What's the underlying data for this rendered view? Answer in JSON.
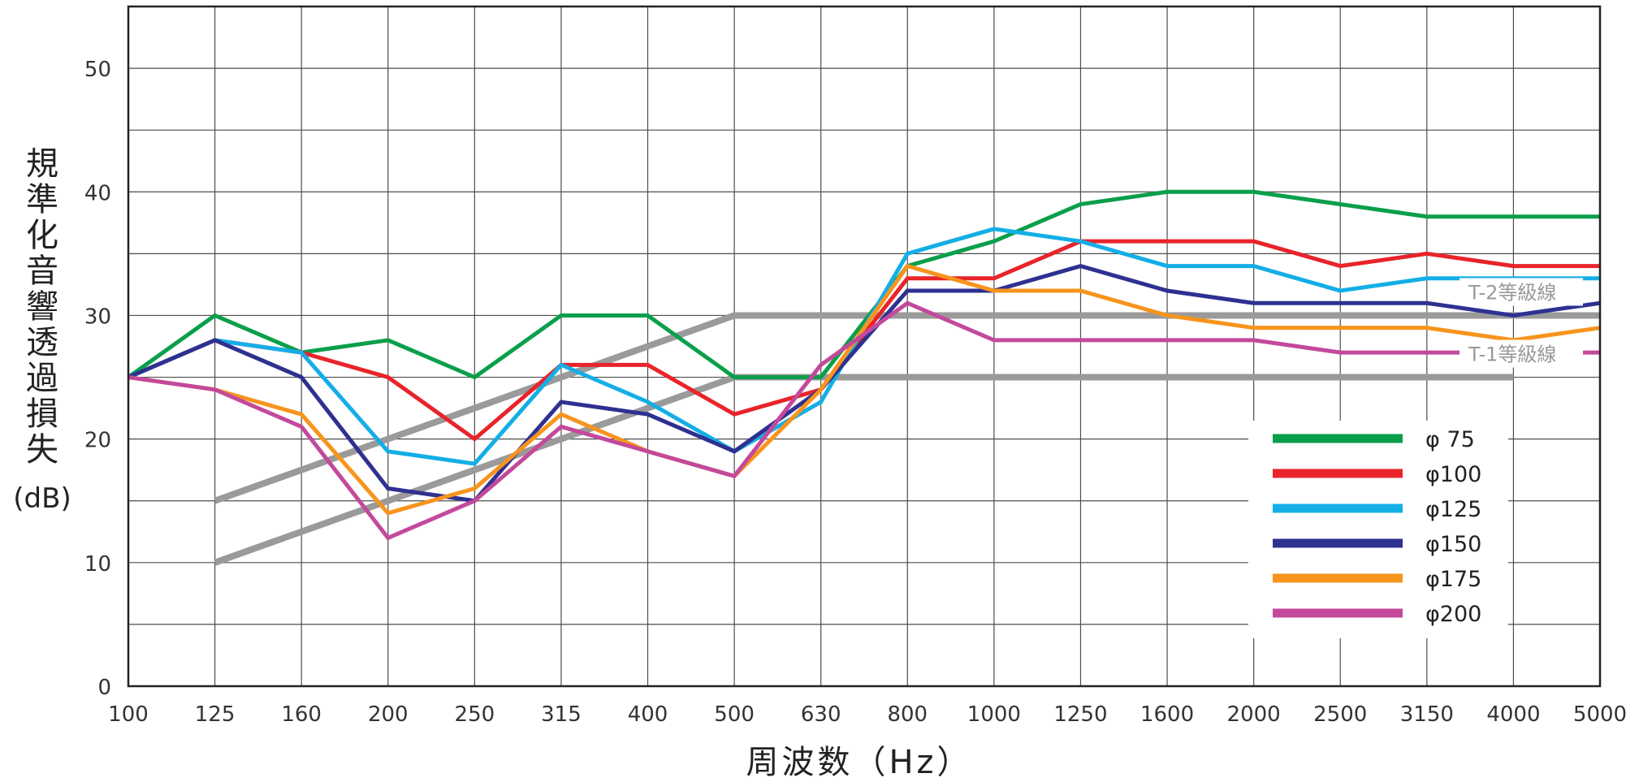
{
  "chart_data": {
    "type": "line",
    "xlabel": "周波数（Hz）",
    "ylabel": "規準化音響透過損失",
    "ylabel_unit": "(dB)",
    "ylim": [
      0,
      55
    ],
    "yticks": [
      0,
      10,
      20,
      30,
      40,
      50
    ],
    "categories": [
      "100",
      "125",
      "160",
      "200",
      "250",
      "315",
      "400",
      "500",
      "630",
      "800",
      "1000",
      "1250",
      "1600",
      "2000",
      "2500",
      "3150",
      "4000",
      "5000"
    ],
    "grid": true,
    "legend_position": "bottom-right",
    "series": [
      {
        "name": "φ  75",
        "color": "#0a9f4a",
        "values": [
          25,
          30,
          27,
          28,
          25,
          30,
          30,
          25,
          25,
          34,
          36,
          39,
          40,
          40,
          39,
          38,
          38,
          38
        ]
      },
      {
        "name": "φ100",
        "color": "#e8242a",
        "values": [
          25,
          28,
          27,
          25,
          20,
          26,
          26,
          22,
          24,
          33,
          33,
          36,
          36,
          36,
          34,
          35,
          34,
          34
        ]
      },
      {
        "name": "φ125",
        "color": "#14aee6",
        "values": [
          25,
          28,
          27,
          19,
          18,
          26,
          23,
          19,
          23,
          35,
          37,
          36,
          34,
          34,
          32,
          33,
          33,
          33
        ]
      },
      {
        "name": "φ150",
        "color": "#2e3190",
        "values": [
          25,
          28,
          25,
          16,
          15,
          23,
          22,
          19,
          24,
          32,
          32,
          34,
          32,
          31,
          31,
          31,
          30,
          31
        ]
      },
      {
        "name": "φ175",
        "color": "#f7941d",
        "values": [
          25,
          24,
          22,
          14,
          16,
          22,
          19,
          17,
          24,
          34,
          32,
          32,
          30,
          29,
          29,
          29,
          28,
          29
        ]
      },
      {
        "name": "φ200",
        "color": "#c3499c",
        "values": [
          25,
          24,
          21,
          12,
          15,
          21,
          19,
          17,
          26,
          31,
          28,
          28,
          28,
          28,
          27,
          27,
          27,
          27
        ]
      }
    ],
    "reference_lines": [
      {
        "name": "T-2等級線",
        "color": "#9a9a9a",
        "values": [
          null,
          15,
          17.5,
          20,
          22.5,
          25,
          27.5,
          30,
          30,
          30,
          30,
          30,
          30,
          30,
          30,
          30,
          30,
          30
        ]
      },
      {
        "name": "T-1等級線",
        "color": "#9a9a9a",
        "values": [
          null,
          10,
          12.5,
          15,
          17.5,
          20,
          22.5,
          25,
          25,
          25,
          25,
          25,
          25,
          25,
          25,
          25,
          25,
          null
        ]
      }
    ]
  }
}
